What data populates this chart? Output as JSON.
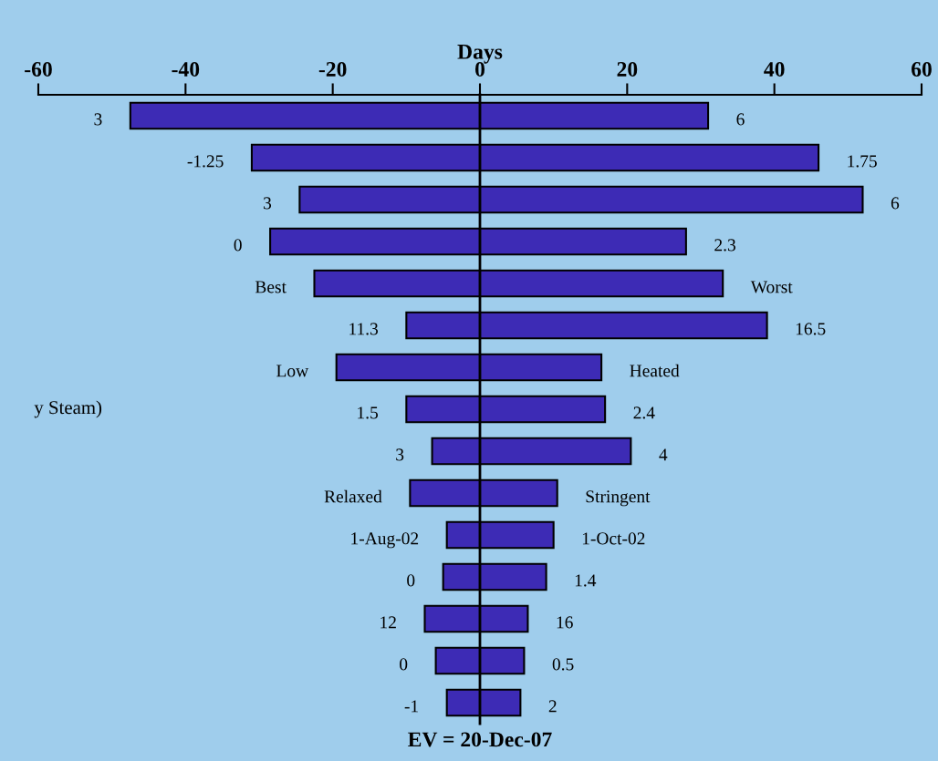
{
  "chart_data": {
    "type": "bar",
    "orientation": "horizontal",
    "stacked": true,
    "xlabel": "Days",
    "categories": [
      null,
      null,
      null,
      null,
      null,
      null,
      null,
      "y Steam)",
      null,
      null,
      null,
      null,
      null,
      null,
      null
    ],
    "series": [
      {
        "color": "#3d2bb5",
        "values": [
          -47.5,
          -31,
          -24.5,
          -28.5,
          -22.5,
          -10,
          -19.5,
          -10,
          -6.5,
          -9.5,
          -4.5,
          -5,
          -7.5,
          -6,
          -4.5
        ]
      },
      {
        "color": "#3d2bb5",
        "values": [
          31,
          46,
          52,
          28,
          33,
          39,
          16.5,
          17,
          20.5,
          10.5,
          10,
          9,
          6.5,
          6,
          5.5
        ]
      }
    ],
    "xlim": [
      -60,
      60
    ],
    "xticks": [
      -60,
      -40,
      -20,
      0,
      20,
      40,
      60
    ],
    "annotations": [
      {
        "text": "3",
        "x": -47.5
      },
      {
        "text": "-1.25",
        "x": -31
      },
      {
        "text": "3",
        "x": -24.5
      },
      {
        "text": "0",
        "x": -28.5
      },
      {
        "text": "Best",
        "x": -22.5
      },
      {
        "text": "11.3",
        "x": -10
      },
      {
        "text": "Low",
        "x": -19.5
      },
      {
        "text": "1.5",
        "x": -10
      },
      {
        "text": "3",
        "x": -6.5
      },
      {
        "text": "Relaxed",
        "x": -9.5
      },
      {
        "text": "1-Aug-02",
        "x": -4.5
      },
      {
        "text": "0",
        "x": -5
      },
      {
        "text": "12",
        "x": -7.5
      },
      {
        "text": "0",
        "x": -6
      },
      {
        "text": "-1",
        "x": -4.5
      },
      {
        "text": "6",
        "x": 31
      },
      {
        "text": "1.75",
        "x": 46
      },
      {
        "text": "6",
        "x": 52
      },
      {
        "text": "2.3",
        "x": 28
      },
      {
        "text": "Worst",
        "x": 33
      },
      {
        "text": "16.5",
        "x": 39
      },
      {
        "text": "Heated",
        "x": 16.5
      },
      {
        "text": "2.4",
        "x": 17
      },
      {
        "text": "4",
        "x": 20.5
      },
      {
        "text": "Stringent",
        "x": 10.5
      },
      {
        "text": "1-Oct-02",
        "x": 10
      },
      {
        "text": "1.4",
        "x": 9
      },
      {
        "text": "16",
        "x": 6.5
      },
      {
        "text": "0.5",
        "x": 6
      },
      {
        "text": "2",
        "x": 5.5
      },
      "EV = 20-Dec-07"
    ]
  }
}
